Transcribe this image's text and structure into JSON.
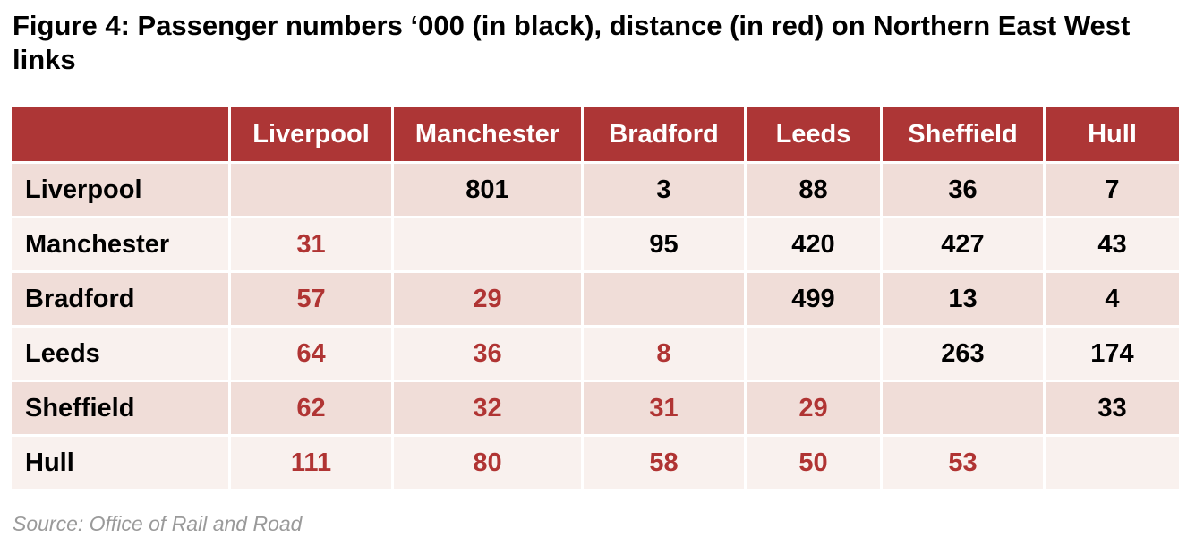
{
  "title": "Figure 4: Passenger numbers ‘000 (in black), distance (in red) on Northern East West links",
  "source": "Source: Office of Rail and Road",
  "colors": {
    "header_bg": "#ad3636",
    "passengers": "#000000",
    "distance": "#b03433",
    "row_odd": "#f0ddd8",
    "row_even": "#f9f1ee"
  },
  "chart_data": {
    "type": "table",
    "columns": [
      "Liverpool",
      "Manchester",
      "Bradford",
      "Leeds",
      "Sheffield",
      "Hull"
    ],
    "rows": [
      {
        "label": "Liverpool",
        "cells": [
          "",
          "801",
          "3",
          "88",
          "36",
          "7"
        ]
      },
      {
        "label": "Manchester",
        "cells": [
          "31",
          "",
          "95",
          "420",
          "427",
          "43"
        ]
      },
      {
        "label": "Bradford",
        "cells": [
          "57",
          "29",
          "",
          "499",
          "13",
          "4"
        ]
      },
      {
        "label": "Leeds",
        "cells": [
          "64",
          "36",
          "8",
          "",
          "263",
          "174"
        ]
      },
      {
        "label": "Sheffield",
        "cells": [
          "62",
          "32",
          "31",
          "29",
          "",
          "33"
        ]
      },
      {
        "label": "Hull",
        "cells": [
          "111",
          "80",
          "58",
          "50",
          "53",
          ""
        ]
      }
    ],
    "cell_meaning": {
      "above_diagonal": "passenger numbers '000 (black)",
      "below_diagonal": "distance (red)"
    }
  }
}
